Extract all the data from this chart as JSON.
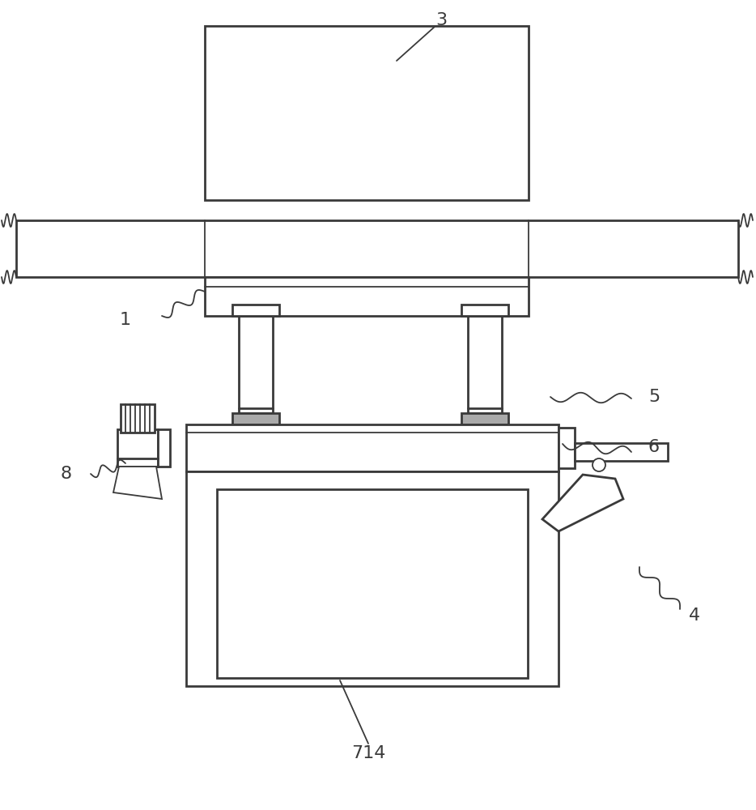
{
  "bg_color": "#ffffff",
  "line_color": "#3a3a3a",
  "line_width": 2.0,
  "fig_width": 9.34,
  "fig_height": 10.0,
  "dpi": 100
}
